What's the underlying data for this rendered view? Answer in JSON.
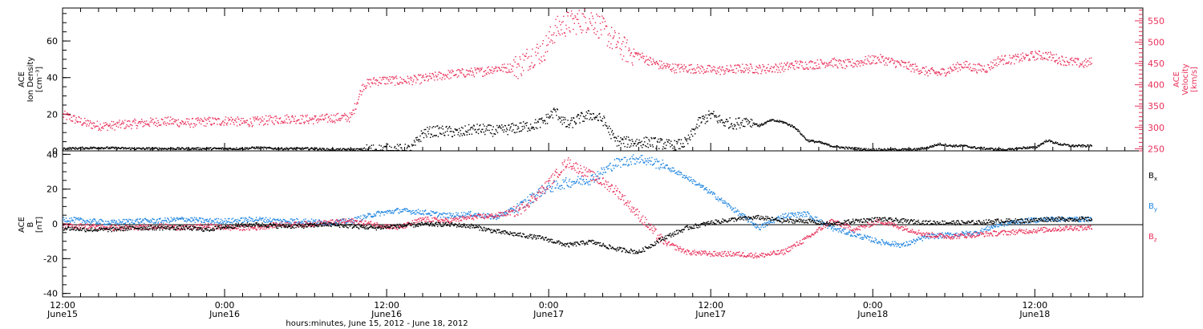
{
  "chart_data": [
    {
      "type": "scatter",
      "panel": "ace-ion-density-velocity",
      "ylabel_left_lines": [
        "ACE",
        "Ion Density",
        "[cm⁻³]"
      ],
      "ylabel_right_lines": [
        "ACE",
        "Velocity",
        "[km/s]"
      ],
      "ylim_left": [
        0,
        78
      ],
      "yticks_left": [
        0,
        20,
        40,
        60
      ],
      "ylim_right": [
        245,
        580
      ],
      "yticks_right": [
        250,
        300,
        350,
        400,
        450,
        500,
        550
      ],
      "grid": false,
      "series": [
        {
          "axis": "left",
          "color": "#000000",
          "x_hours": [
            0,
            6,
            12,
            18,
            22.5,
            23,
            26,
            30,
            32,
            36,
            40,
            42,
            44,
            46,
            48,
            50,
            52,
            54,
            56,
            58,
            60,
            62,
            64,
            66,
            68,
            70,
            72,
            74,
            76,
            78,
            80,
            82,
            84,
            86,
            88,
            90,
            92,
            94,
            96,
            98,
            100,
            102,
            104,
            106,
            108,
            110,
            112,
            114,
            116,
            118,
            120,
            122,
            124,
            126,
            128,
            130,
            132,
            134,
            136,
            138,
            140,
            142,
            144,
            146,
            148,
            150,
            152,
            154,
            156,
            158,
            160,
            162,
            164,
            166,
            168,
            170,
            171.5
          ],
          "values": [
            1.5,
            2,
            1.5,
            1.5,
            1.5,
            1.5,
            1.5,
            1.5,
            2,
            1.5,
            1.5,
            1.5,
            1,
            1,
            1,
            1,
            1,
            1,
            1,
            1,
            10,
            11,
            11,
            10,
            12,
            12,
            11,
            12,
            13,
            14,
            16,
            22,
            14,
            18,
            20,
            17,
            6,
            5,
            5,
            5,
            4,
            3,
            5,
            16,
            20,
            16,
            15,
            17,
            14,
            17,
            16,
            13,
            6,
            5,
            3,
            2,
            1.5,
            1,
            1,
            1,
            1,
            1,
            2,
            4,
            3,
            3,
            2,
            1.5,
            1,
            1,
            2,
            2,
            6,
            4,
            3,
            3,
            3
          ]
        },
        {
          "axis": "right",
          "color": "#e8305a",
          "x_hours": [
            0,
            2,
            4,
            6,
            8,
            10,
            12,
            14,
            16,
            18,
            20,
            22,
            24,
            26,
            28,
            30,
            32,
            34,
            36,
            38,
            40,
            42,
            44,
            46,
            48,
            50,
            52,
            54,
            56,
            58,
            60,
            62,
            64,
            66,
            68,
            70,
            72,
            74,
            76,
            78,
            80,
            82,
            84,
            86,
            88,
            90,
            92,
            94,
            96,
            98,
            100,
            102,
            104,
            106,
            108,
            110,
            112,
            114,
            116,
            118,
            120,
            122,
            124,
            126,
            128,
            130,
            132,
            134,
            136,
            138,
            140,
            142,
            144,
            146,
            148,
            150,
            152,
            154,
            156,
            158,
            160,
            162,
            164,
            166,
            168,
            170,
            171.5
          ],
          "values": [
            330,
            320,
            310,
            305,
            305,
            308,
            310,
            312,
            315,
            315,
            312,
            312,
            315,
            315,
            318,
            312,
            315,
            318,
            320,
            322,
            320,
            320,
            322,
            324,
            325,
            400,
            410,
            412,
            410,
            412,
            415,
            420,
            425,
            428,
            430,
            432,
            440,
            440,
            445,
            470,
            480,
            530,
            545,
            550,
            555,
            530,
            500,
            480,
            470,
            455,
            445,
            440,
            440,
            438,
            436,
            435,
            438,
            440,
            438,
            440,
            442,
            448,
            448,
            450,
            455,
            448,
            452,
            458,
            462,
            455,
            448,
            440,
            432,
            428,
            438,
            448,
            440,
            440,
            460,
            460,
            465,
            470,
            470,
            460,
            455,
            450,
            455
          ]
        }
      ]
    },
    {
      "type": "scatter",
      "panel": "ace-magnetic-field",
      "ylabel_lines": [
        "ACE",
        "B",
        "[nT]"
      ],
      "ylim": [
        -42,
        42
      ],
      "yticks": [
        -40,
        -20,
        0,
        20,
        40
      ],
      "zero_line": true,
      "grid": false,
      "legend_position": "right",
      "series": [
        {
          "name_main": "B",
          "name_sub": "x",
          "color": "#000000",
          "x_hours": [
            0,
            4,
            8,
            12,
            16,
            20,
            24,
            28,
            32,
            36,
            40,
            44,
            48,
            52,
            56,
            60,
            64,
            68,
            72,
            76,
            80,
            84,
            88,
            92,
            96,
            100,
            104,
            108,
            112,
            116,
            120,
            124,
            128,
            132,
            136,
            140,
            144,
            148,
            152,
            156,
            160,
            164,
            168,
            171.5
          ],
          "values": [
            -2,
            -3,
            -3,
            -2,
            -2,
            -2,
            -3,
            -1,
            0,
            -1,
            -1,
            0,
            -1,
            -2,
            -1,
            0,
            0,
            -1,
            -4,
            -6,
            -8,
            -12,
            -10,
            -14,
            -16,
            -8,
            -2,
            1,
            3,
            4,
            2,
            2,
            0,
            2,
            3,
            2,
            1,
            1,
            1,
            2,
            2,
            3,
            3,
            3
          ]
        },
        {
          "name_main": "B",
          "name_sub": "y",
          "color": "#1e84e0",
          "x_hours": [
            0,
            4,
            8,
            12,
            16,
            20,
            24,
            28,
            32,
            36,
            40,
            44,
            48,
            52,
            56,
            60,
            64,
            68,
            72,
            76,
            80,
            84,
            88,
            92,
            96,
            100,
            104,
            108,
            112,
            116,
            120,
            124,
            128,
            132,
            136,
            140,
            144,
            148,
            152,
            156,
            160,
            164,
            168,
            171.5
          ],
          "values": [
            3,
            2,
            1,
            2,
            2,
            3,
            2,
            2,
            3,
            2,
            2,
            1,
            2,
            6,
            8,
            7,
            5,
            6,
            4,
            10,
            20,
            24,
            26,
            35,
            38,
            34,
            27,
            18,
            8,
            -2,
            5,
            6,
            -2,
            -6,
            -10,
            -12,
            -7,
            -6,
            -5,
            0,
            2,
            3,
            3,
            3
          ]
        },
        {
          "name_main": "B",
          "name_sub": "z",
          "color": "#e8305a",
          "x_hours": [
            0,
            4,
            8,
            12,
            16,
            20,
            24,
            28,
            32,
            36,
            40,
            44,
            48,
            52,
            56,
            60,
            64,
            68,
            72,
            76,
            80,
            84,
            88,
            92,
            96,
            100,
            104,
            108,
            112,
            116,
            120,
            124,
            128,
            132,
            136,
            140,
            144,
            148,
            152,
            156,
            160,
            164,
            168,
            171.5
          ],
          "values": [
            -1,
            -1,
            -2,
            -2,
            -1,
            -2,
            -1,
            -2,
            -2,
            0,
            0,
            1,
            2,
            0,
            -2,
            3,
            2,
            4,
            5,
            8,
            20,
            36,
            28,
            20,
            5,
            -10,
            -16,
            -17,
            -17,
            -18,
            -16,
            -8,
            2,
            -3,
            2,
            -2,
            -6,
            -7,
            -6,
            -5,
            -4,
            -3,
            -2,
            -2
          ]
        }
      ]
    }
  ],
  "x_axis": {
    "xlim_hours": [
      0,
      180
    ],
    "major_ticks": [
      {
        "hour": 0,
        "time": "12:00",
        "date": "June15"
      },
      {
        "hour": 27,
        "time": "0:00",
        "date": "June16"
      },
      {
        "hour": 54,
        "time": "12:00",
        "date": "June16"
      },
      {
        "hour": 81,
        "time": "0:00",
        "date": "June17"
      },
      {
        "hour": 108,
        "time": "12:00",
        "date": "June17"
      },
      {
        "hour": 135,
        "time": "0:00",
        "date": "June18"
      },
      {
        "hour": 162,
        "time": "12:00",
        "date": "June18"
      }
    ],
    "xlabel": "hours:minutes, June 15, 2012 - June 18, 2012"
  }
}
